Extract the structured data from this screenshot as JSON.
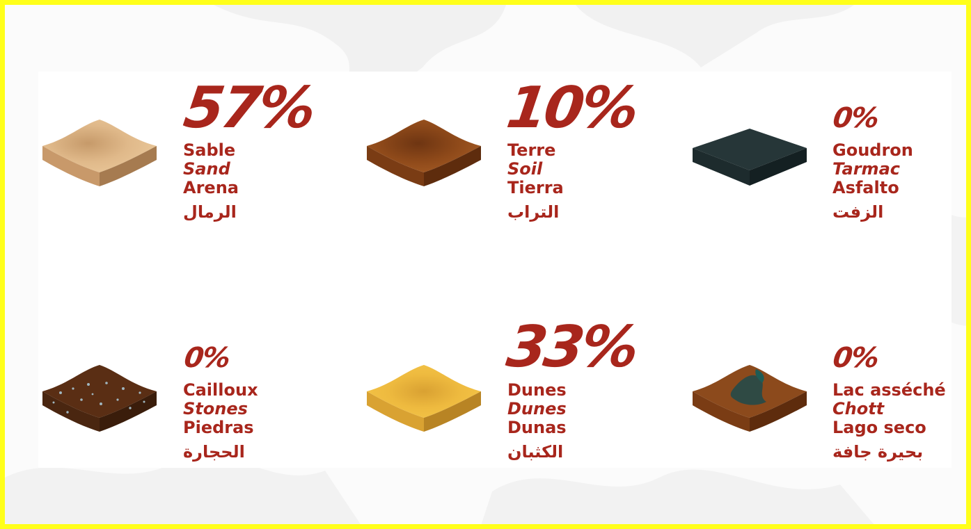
{
  "colors": {
    "accent": "#a8261c",
    "border": "#ffff1a"
  },
  "terrains": [
    {
      "id": "sand",
      "percent": "57%",
      "fr": "Sable",
      "en": "Sand",
      "es": "Arena",
      "ar": "الرمال",
      "icon": "sand-tile-icon"
    },
    {
      "id": "soil",
      "percent": "10%",
      "fr": "Terre",
      "en": "Soil",
      "es": "Tierra",
      "ar": "التراب",
      "icon": "soil-tile-icon"
    },
    {
      "id": "tarmac",
      "percent": "0%",
      "fr": "Goudron",
      "en": "Tarmac",
      "es": "Asfalto",
      "ar": "الزفت",
      "icon": "tarmac-tile-icon"
    },
    {
      "id": "stones",
      "percent": "0%",
      "fr": "Cailloux",
      "en": "Stones",
      "es": "Piedras",
      "ar": "الحجارة",
      "icon": "stones-tile-icon"
    },
    {
      "id": "dunes",
      "percent": "33%",
      "fr": "Dunes",
      "en": "Dunes",
      "es": "Dunas",
      "ar": "الكثبان",
      "icon": "dunes-tile-icon"
    },
    {
      "id": "chott",
      "percent": "0%",
      "fr": "Lac asséché",
      "en": "Chott",
      "es": "Lago seco",
      "ar": "بحيرة جافة",
      "icon": "dry-lake-tile-icon"
    }
  ]
}
